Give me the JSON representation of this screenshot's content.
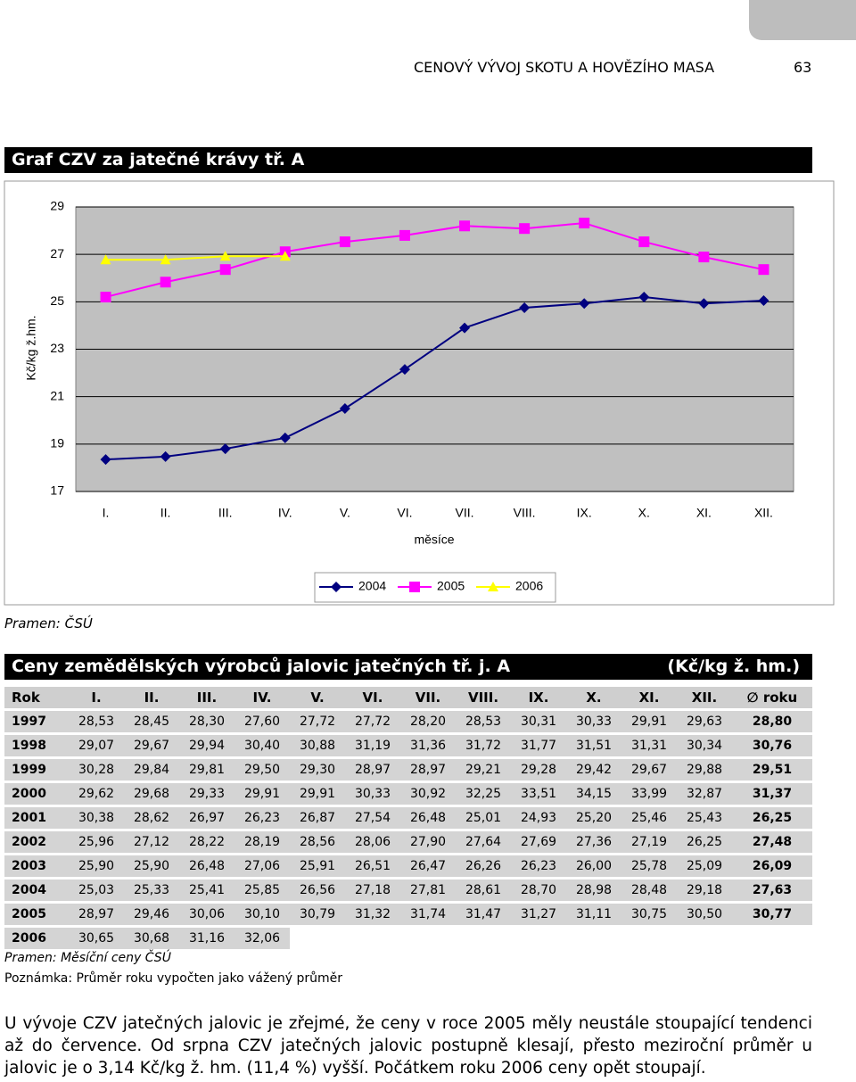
{
  "header": {
    "title": "CENOVÝ VÝVOJ SKOTU A HOVĚZÍHO MASA",
    "page": "63"
  },
  "chart_data": {
    "type": "line",
    "title": "Graf CZV za jatečné krávy tř. A",
    "categories": [
      "I.",
      "II.",
      "III.",
      "IV.",
      "V.",
      "VI.",
      "VII.",
      "VIII.",
      "IX.",
      "X.",
      "XI.",
      "XII."
    ],
    "x_label": "měsíce",
    "y_label": "Kč/kg ž.hm.",
    "ylim": [
      17,
      29
    ],
    "yticks": [
      17,
      19,
      21,
      23,
      25,
      27,
      29
    ],
    "grid": true,
    "legend": "bottom",
    "series": [
      {
        "name": "2004",
        "color": "#000080",
        "marker": "diamond",
        "values": [
          18.35,
          18.47,
          18.8,
          19.26,
          20.5,
          22.15,
          23.9,
          24.75,
          24.93,
          25.2,
          24.93,
          25.05
        ]
      },
      {
        "name": "2005",
        "color": "#ff00ff",
        "marker": "square",
        "values": [
          25.2,
          25.83,
          26.36,
          27.11,
          27.53,
          27.8,
          28.2,
          28.09,
          28.32,
          27.53,
          26.89,
          26.36
        ]
      },
      {
        "name": "2006",
        "color": "#ffff00",
        "marker": "triangle",
        "values": [
          26.77,
          26.77,
          26.92,
          26.92,
          null,
          null,
          null,
          null,
          null,
          null,
          null,
          null
        ]
      }
    ]
  },
  "chart_source": "Pramen: ČSÚ",
  "table": {
    "title": "Ceny zemědělských výrobců jalovic jatečných tř. j. A",
    "unit": "(Kč/kg ž. hm.)",
    "columns": [
      "Rok",
      "I.",
      "II.",
      "III.",
      "IV.",
      "V.",
      "VI.",
      "VII.",
      "VIII.",
      "IX.",
      "X.",
      "XI.",
      "XII.",
      "∅ roku"
    ],
    "rows": [
      [
        "1997",
        "28,53",
        "28,45",
        "28,30",
        "27,60",
        "27,72",
        "27,72",
        "28,20",
        "28,53",
        "30,31",
        "30,33",
        "29,91",
        "29,63",
        "28,80"
      ],
      [
        "1998",
        "29,07",
        "29,67",
        "29,94",
        "30,40",
        "30,88",
        "31,19",
        "31,36",
        "31,72",
        "31,77",
        "31,51",
        "31,31",
        "30,34",
        "30,76"
      ],
      [
        "1999",
        "30,28",
        "29,84",
        "29,81",
        "29,50",
        "29,30",
        "28,97",
        "28,97",
        "29,21",
        "29,28",
        "29,42",
        "29,67",
        "29,88",
        "29,51"
      ],
      [
        "2000",
        "29,62",
        "29,68",
        "29,33",
        "29,91",
        "29,91",
        "30,33",
        "30,92",
        "32,25",
        "33,51",
        "34,15",
        "33,99",
        "32,87",
        "31,37"
      ],
      [
        "2001",
        "30,38",
        "28,62",
        "26,97",
        "26,23",
        "26,87",
        "27,54",
        "26,48",
        "25,01",
        "24,93",
        "25,20",
        "25,46",
        "25,43",
        "26,25"
      ],
      [
        "2002",
        "25,96",
        "27,12",
        "28,22",
        "28,19",
        "28,56",
        "28,06",
        "27,90",
        "27,64",
        "27,69",
        "27,36",
        "27,19",
        "26,25",
        "27,48"
      ],
      [
        "2003",
        "25,90",
        "25,90",
        "26,48",
        "27,06",
        "25,91",
        "26,51",
        "26,47",
        "26,26",
        "26,23",
        "26,00",
        "25,78",
        "25,09",
        "26,09"
      ],
      [
        "2004",
        "25,03",
        "25,33",
        "25,41",
        "25,85",
        "26,56",
        "27,18",
        "27,81",
        "28,61",
        "28,70",
        "28,98",
        "28,48",
        "29,18",
        "27,63"
      ],
      [
        "2005",
        "28,97",
        "29,46",
        "30,06",
        "30,10",
        "30,79",
        "31,32",
        "31,74",
        "31,47",
        "31,27",
        "31,11",
        "30,75",
        "30,50",
        "30,77"
      ],
      [
        "2006",
        "30,65",
        "30,68",
        "31,16",
        "32,06"
      ]
    ]
  },
  "notes": [
    "Pramen: Měsíční ceny ČSÚ",
    "Poznámka: Průměr roku vypočten jako vážený průměr"
  ],
  "paragraph": "U vývoje CZV jatečných jalovic je zřejmé, že ceny v roce 2005 měly neustále stoupající tendenci až do července. Od srpna CZV jatečných jalovic postupně klesají, přesto meziroční průměr u jalovic je o 3,14 Kč/kg ž. hm. (11,4 %) vyšší. Počátkem roku 2006 ceny opět stoupají."
}
